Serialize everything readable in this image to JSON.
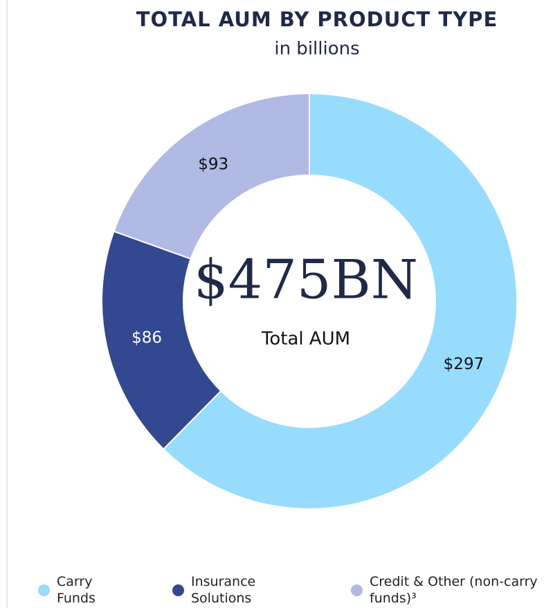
{
  "chart_data": {
    "type": "donut",
    "title": "TOTAL AUM BY PRODUCT TYPE",
    "subtitle": "in billions",
    "center_value": "$475BN",
    "center_label": "Total AUM",
    "categories": [
      "Carry Funds",
      "Insurance Solutions",
      "Credit & Other (non-carry funds)³"
    ],
    "values": [
      297,
      86,
      93
    ],
    "value_labels": [
      "$297",
      "$86",
      "$93"
    ],
    "colors": [
      "#97dbfd",
      "#324891",
      "#b0bae4"
    ],
    "label_colors": [
      "#111111",
      "#ffffff",
      "#111111"
    ]
  }
}
